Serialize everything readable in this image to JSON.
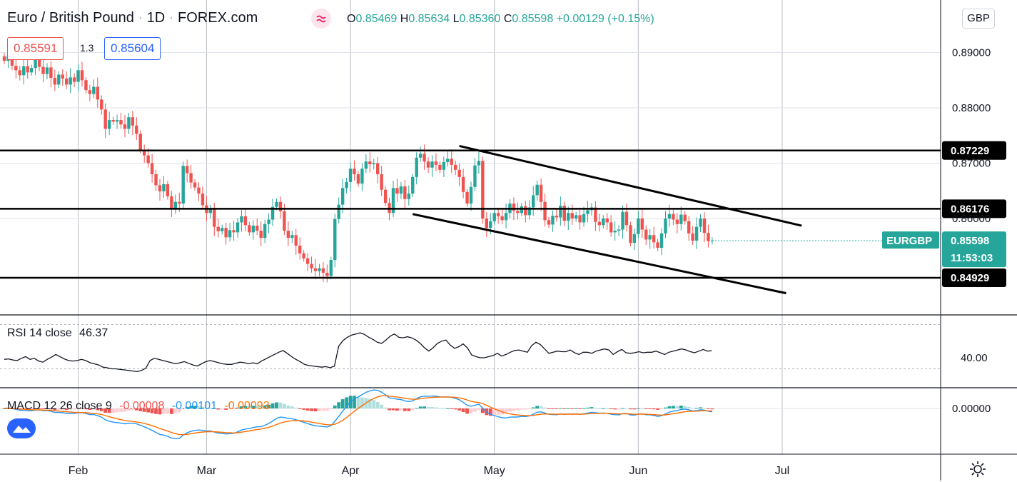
{
  "header": {
    "symbol": "Euro / British Pound",
    "interval": "1D",
    "source": "FOREX.com",
    "open_label": "O",
    "open": "0.85469",
    "high_label": "H",
    "high": "0.85634",
    "low_label": "L",
    "low": "0.85360",
    "close_label": "C",
    "close": "0.85598",
    "change": "+0.00129 (+0.15%)",
    "sell_price": "0.85591",
    "spread": "1.3",
    "buy_price": "0.85604",
    "currency_button": "GBP"
  },
  "colors": {
    "up": "#26a69a",
    "down": "#ef5350",
    "buy_border": "#2962ff",
    "sell_border": "#ef5350",
    "macd_line": "#2196f3",
    "signal_line": "#ff6d00",
    "rsi_line": "#131722",
    "level_line": "#000000"
  },
  "price_axis": {
    "ticks": [
      {
        "value": 0.89,
        "label": "0.89000"
      },
      {
        "value": 0.88,
        "label": "0.88000"
      },
      {
        "value": 0.87,
        "label": "0.87000"
      },
      {
        "value": 0.86,
        "label": "0.86000"
      }
    ]
  },
  "horizontal_levels": [
    {
      "value": 0.87229,
      "label": "0.87229"
    },
    {
      "value": 0.86176,
      "label": "0.86176"
    },
    {
      "value": 0.84929,
      "label": "0.84929"
    }
  ],
  "channel": {
    "upper": {
      "from": {
        "day": 117,
        "value": 0.8731
      },
      "to": {
        "day": 205,
        "value": 0.8587
      }
    },
    "lower": {
      "from": {
        "day": 105,
        "value": 0.8608
      },
      "to": {
        "day": 201,
        "value": 0.8465
      }
    }
  },
  "current": {
    "symbol": "EURGBP",
    "price": "0.85598",
    "countdown": "11:53:03"
  },
  "time_axis": {
    "months": [
      {
        "label": "Feb",
        "day": 19
      },
      {
        "label": "Mar",
        "day": 52
      },
      {
        "label": "Apr",
        "day": 89
      },
      {
        "label": "May",
        "day": 126
      },
      {
        "label": "Jun",
        "day": 163
      },
      {
        "label": "Jul",
        "day": 200
      }
    ]
  },
  "rsi": {
    "label": "RSI 14 close",
    "value": "46.37",
    "tick": {
      "value": 40,
      "label": "40.00"
    },
    "bands": [
      30,
      70
    ]
  },
  "macd": {
    "label": "MACD 12 26 close 9",
    "histogram": "-0.00008",
    "macd": "-0.00101",
    "signal": "-0.00093",
    "tick": {
      "value": 0,
      "label": "0.00000"
    }
  },
  "chart_data": {
    "type": "candlestick",
    "title": "Euro / British Pound · 1D · FOREX.com",
    "x_unit": "trading day index (Feb 1 ≈ day 19, Jul 1 ≈ day 200)",
    "ylim": [
      0.8445,
      0.893
    ],
    "closes": [
      0.8885,
      0.8893,
      0.8876,
      0.8868,
      0.8859,
      0.8875,
      0.8864,
      0.8872,
      0.889,
      0.8874,
      0.8861,
      0.8873,
      0.8854,
      0.8842,
      0.886,
      0.8853,
      0.8842,
      0.8855,
      0.8847,
      0.8868,
      0.885,
      0.8832,
      0.8825,
      0.8838,
      0.8815,
      0.8797,
      0.8762,
      0.8778,
      0.8775,
      0.8778,
      0.877,
      0.8762,
      0.8783,
      0.8768,
      0.8753,
      0.8724,
      0.8714,
      0.87,
      0.868,
      0.866,
      0.8649,
      0.8662,
      0.864,
      0.8616,
      0.863,
      0.8627,
      0.8695,
      0.8682,
      0.8665,
      0.8656,
      0.8645,
      0.8624,
      0.861,
      0.8617,
      0.8585,
      0.8577,
      0.8583,
      0.8566,
      0.8579,
      0.8575,
      0.8593,
      0.8604,
      0.8588,
      0.8575,
      0.8587,
      0.8578,
      0.8565,
      0.859,
      0.8598,
      0.8621,
      0.863,
      0.8613,
      0.8578,
      0.8565,
      0.857,
      0.8551,
      0.8537,
      0.8528,
      0.8518,
      0.851,
      0.8505,
      0.851,
      0.8502,
      0.8496,
      0.8525,
      0.8599,
      0.8625,
      0.8655,
      0.8666,
      0.869,
      0.868,
      0.8663,
      0.869,
      0.8703,
      0.8698,
      0.87,
      0.868,
      0.8652,
      0.8628,
      0.861,
      0.8655,
      0.8645,
      0.8658,
      0.8635,
      0.8645,
      0.8675,
      0.871,
      0.8717,
      0.8703,
      0.8692,
      0.8703,
      0.8697,
      0.8688,
      0.8702,
      0.8708,
      0.8697,
      0.8688,
      0.8675,
      0.8648,
      0.8627,
      0.8657,
      0.8696,
      0.8704,
      0.86,
      0.8583,
      0.8595,
      0.861,
      0.8604,
      0.8597,
      0.861,
      0.8627,
      0.8614,
      0.861,
      0.8622,
      0.8606,
      0.862,
      0.8642,
      0.8661,
      0.863,
      0.8597,
      0.8589,
      0.8605,
      0.8602,
      0.8623,
      0.8596,
      0.861,
      0.86,
      0.8606,
      0.8593,
      0.8608,
      0.8615,
      0.862,
      0.8594,
      0.8588,
      0.86,
      0.8593,
      0.8575,
      0.8578,
      0.858,
      0.8612,
      0.8588,
      0.8556,
      0.8572,
      0.86,
      0.858,
      0.8562,
      0.857,
      0.8557,
      0.8547,
      0.8573,
      0.86,
      0.8608,
      0.8598,
      0.859,
      0.8607,
      0.8595,
      0.8573,
      0.856,
      0.8585,
      0.86,
      0.8574,
      0.8559,
      0.856
    ],
    "candles": [],
    "rsi_values": [
      38.5,
      39.0,
      38.0,
      37.5,
      39.5,
      41.0,
      38.5,
      39.5,
      37.0,
      36.0,
      38.5,
      40.5,
      43.0,
      41.0,
      39.0,
      37.5,
      37.0,
      37.5,
      38.5,
      37.5,
      35.5,
      34.5,
      33.5,
      31.5,
      31.0,
      30.0,
      30.0,
      29.5,
      29.0,
      28.5,
      28.0,
      27.5,
      28.5,
      30.5,
      37.5,
      39.5,
      38.5,
      37.5,
      36.5,
      35.5,
      34.5,
      35.5,
      36.5,
      35.0,
      33.5,
      32.5,
      34.5,
      36.5,
      37.5,
      36.5,
      35.5,
      34.5,
      34.0,
      34.0,
      35.0,
      36.0,
      35.5,
      34.5,
      35.5,
      34.5,
      37.0,
      39.0,
      41.0,
      43.0,
      45.0,
      46.5,
      44.0,
      41.0,
      38.5,
      36.5,
      34.0,
      33.0,
      32.5,
      32.0,
      31.5,
      32.0,
      31.0,
      32.5,
      50.5,
      55.5,
      58.5,
      60.5,
      61.5,
      62.5,
      61.0,
      58.5,
      56.5,
      54.0,
      53.0,
      56.0,
      59.5,
      61.5,
      58.5,
      58.0,
      59.0,
      58.0,
      56.0,
      53.0,
      49.0,
      46.0,
      49.0,
      53.0,
      55.0,
      56.0,
      51.5,
      48.5,
      50.0,
      52.5,
      49.0,
      42.5,
      41.0,
      40.0,
      40.0,
      41.0,
      42.0,
      44.0,
      41.5,
      43.0,
      45.0,
      46.5,
      47.0,
      46.0,
      45.0,
      51.0,
      54.0,
      52.0,
      48.0,
      44.0,
      45.0,
      46.0,
      45.5,
      45.5,
      47.0,
      44.5,
      43.0,
      45.0,
      45.0,
      44.0,
      46.0,
      47.0,
      48.0,
      47.0,
      43.0,
      45.5,
      47.5,
      44.5,
      44.0,
      44.5,
      45.5,
      44.5,
      45.0,
      45.0,
      46.0,
      44.5,
      43.0,
      45.0,
      46.0,
      47.0,
      48.0,
      47.0,
      45.5,
      44.5,
      46.0,
      47.5,
      46.0,
      46.37
    ],
    "macd_values": [],
    "signal_values": []
  }
}
